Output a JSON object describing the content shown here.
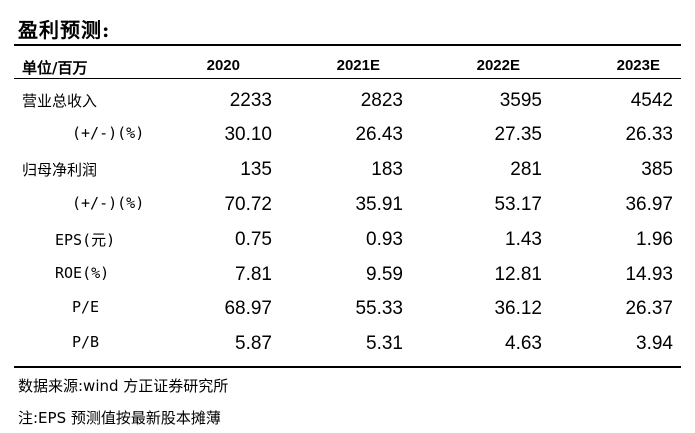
{
  "title": "盈利预测:",
  "header": {
    "unit_label": "单位/百万",
    "years": [
      "2020",
      "2021E",
      "2022E",
      "2023E"
    ]
  },
  "rows": [
    {
      "label": "营业总收入",
      "values": [
        "2233",
        "2823",
        "3595",
        "4542"
      ]
    },
    {
      "label": "(+/-)(%)",
      "values": [
        "30.10",
        "26.43",
        "27.35",
        "26.33"
      ]
    },
    {
      "label": "归母净利润",
      "values": [
        "135",
        "183",
        "281",
        "385"
      ]
    },
    {
      "label": "(+/-)(%)",
      "values": [
        "70.72",
        "35.91",
        "53.17",
        "36.97"
      ]
    },
    {
      "label": "EPS(元)",
      "values": [
        "0.75",
        "0.93",
        "1.43",
        "1.96"
      ]
    },
    {
      "label": "ROE(%)",
      "values": [
        "7.81",
        "9.59",
        "12.81",
        "14.93"
      ]
    },
    {
      "label": "P/E",
      "values": [
        "68.97",
        "55.33",
        "36.12",
        "26.37"
      ]
    },
    {
      "label": "P/B",
      "values": [
        "5.87",
        "5.31",
        "4.63",
        "3.94"
      ]
    }
  ],
  "source": "数据来源:wind 方正证券研究所",
  "note": "注:EPS 预测值按最新股本摊薄"
}
